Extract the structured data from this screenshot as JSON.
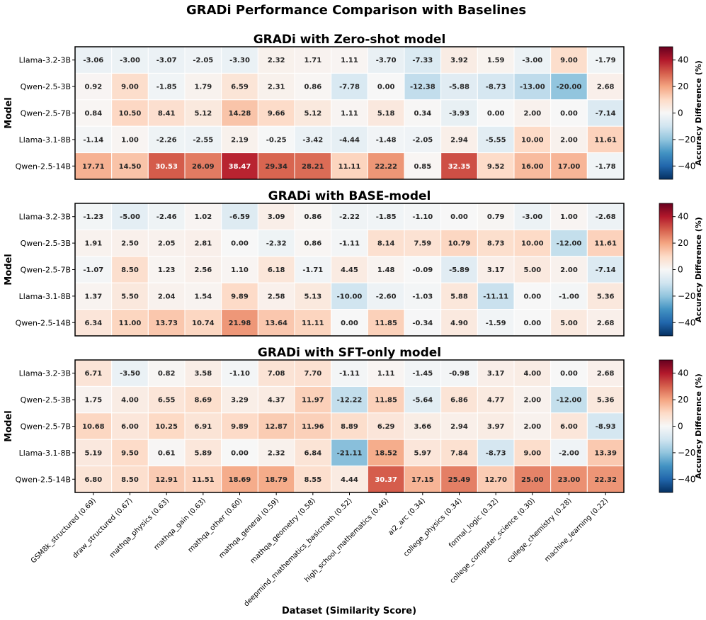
{
  "chart_data": {
    "type": "heatmap",
    "title": "GRADi Performance Comparison with Baselines",
    "xlabel": "Dataset (Similarity Score)",
    "ylabel": "Model",
    "colorbar_label": "Accuracy Difference (%)",
    "colorbar_range": [
      -50,
      50
    ],
    "colorbar_ticks": [
      40,
      20,
      0,
      -20,
      -40
    ],
    "colorbar_tick_labels": [
      "40",
      "20",
      "0",
      "−20",
      "−40"
    ],
    "colormap": "RdBu_r",
    "models": [
      "Llama-3.2-3B",
      "Qwen-2.5-3B",
      "Qwen-2.5-7B",
      "Llama-3.1-8B",
      "Qwen-2.5-14B"
    ],
    "datasets": [
      "GSM8k_structured (0.69)",
      "draw_structured (0.67)",
      "mathqa_physics (0.63)",
      "mathqa_gain (0.63)",
      "mathqa_other (0.60)",
      "mathqa_general (0.59)",
      "mathqa_geometry (0.58)",
      "deepmind_mathematics_basicmath (0.52)",
      "high_school_mathematics (0.46)",
      "ai2_arc (0.34)",
      "college_physics (0.34)",
      "formal_logic (0.32)",
      "college_computer_science (0.30)",
      "college_chemistry (0.28)",
      "machine_learning (0.22)"
    ],
    "panels": [
      {
        "title": "GRADi with Zero-shot model",
        "values": [
          [
            "-3.06",
            "-3.00",
            "-3.07",
            "-2.05",
            "-3.30",
            "2.32",
            "1.71",
            "1.11",
            "-3.70",
            "-7.33",
            "3.92",
            "1.59",
            "-3.00",
            "9.00",
            "-1.79"
          ],
          [
            "0.92",
            "9.00",
            "-1.85",
            "1.79",
            "6.59",
            "2.31",
            "0.86",
            "-7.78",
            "0.00",
            "-12.38",
            "-5.88",
            "-8.73",
            "-13.00",
            "-20.00",
            "2.68"
          ],
          [
            "0.84",
            "10.50",
            "8.41",
            "5.12",
            "14.28",
            "9.66",
            "5.12",
            "1.11",
            "5.18",
            "0.34",
            "-3.93",
            "0.00",
            "2.00",
            "0.00",
            "-7.14"
          ],
          [
            "-1.14",
            "1.00",
            "-2.26",
            "-2.55",
            "2.19",
            "-0.25",
            "-3.42",
            "-4.44",
            "-1.48",
            "-2.05",
            "2.94",
            "-5.55",
            "10.00",
            "2.00",
            "11.61"
          ],
          [
            "17.71",
            "14.50",
            "30.53",
            "26.09",
            "38.47",
            "29.34",
            "28.21",
            "11.11",
            "22.22",
            "0.85",
            "32.35",
            "9.52",
            "16.00",
            "17.00",
            "-1.78"
          ]
        ]
      },
      {
        "title": "GRADi with BASE-model",
        "values": [
          [
            "-1.23",
            "-5.00",
            "-2.46",
            "1.02",
            "-6.59",
            "3.09",
            "0.86",
            "-2.22",
            "-1.85",
            "-1.10",
            "0.00",
            "0.79",
            "-3.00",
            "1.00",
            "-2.68"
          ],
          [
            "1.91",
            "2.50",
            "2.05",
            "2.81",
            "0.00",
            "-2.32",
            "0.86",
            "-1.11",
            "8.14",
            "7.59",
            "10.79",
            "8.73",
            "10.00",
            "-12.00",
            "11.61"
          ],
          [
            "-1.07",
            "8.50",
            "1.23",
            "2.56",
            "1.10",
            "6.18",
            "-1.71",
            "4.45",
            "1.48",
            "-0.09",
            "-5.89",
            "3.17",
            "5.00",
            "2.00",
            "-7.14"
          ],
          [
            "1.37",
            "5.50",
            "2.04",
            "1.54",
            "9.89",
            "2.58",
            "5.13",
            "-10.00",
            "-2.60",
            "-1.03",
            "5.88",
            "-11.11",
            "0.00",
            "-1.00",
            "5.36"
          ],
          [
            "6.34",
            "11.00",
            "13.73",
            "10.74",
            "21.98",
            "13.64",
            "11.11",
            "0.00",
            "11.85",
            "-0.34",
            "4.90",
            "-1.59",
            "0.00",
            "5.00",
            "2.68"
          ]
        ]
      },
      {
        "title": "GRADi with SFT-only model",
        "values": [
          [
            "6.71",
            "-3.50",
            "0.82",
            "3.58",
            "-1.10",
            "7.08",
            "7.70",
            "-1.11",
            "1.11",
            "-1.45",
            "-0.98",
            "3.17",
            "4.00",
            "0.00",
            "2.68"
          ],
          [
            "1.75",
            "4.00",
            "6.55",
            "8.69",
            "3.29",
            "4.37",
            "11.97",
            "-12.22",
            "11.85",
            "-5.64",
            "6.86",
            "4.77",
            "2.00",
            "-12.00",
            "5.36"
          ],
          [
            "10.68",
            "6.00",
            "10.25",
            "6.91",
            "9.89",
            "12.87",
            "11.96",
            "8.89",
            "6.29",
            "3.66",
            "2.94",
            "3.97",
            "2.00",
            "6.00",
            "-8.93"
          ],
          [
            "5.19",
            "9.50",
            "0.61",
            "5.89",
            "0.00",
            "2.32",
            "6.84",
            "-21.11",
            "18.52",
            "5.97",
            "7.84",
            "-8.73",
            "9.00",
            "-2.00",
            "13.39"
          ],
          [
            "6.80",
            "8.50",
            "12.91",
            "11.51",
            "18.69",
            "18.79",
            "8.55",
            "4.44",
            "30.37",
            "17.15",
            "25.49",
            "12.70",
            "25.00",
            "23.00",
            "22.32"
          ]
        ]
      }
    ]
  }
}
